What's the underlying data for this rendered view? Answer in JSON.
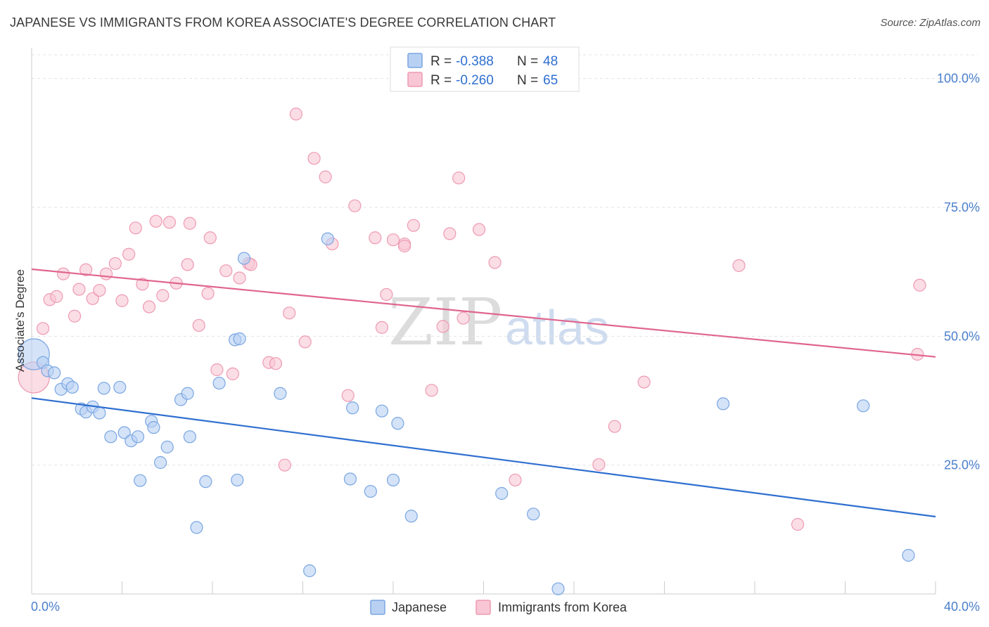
{
  "title": "JAPANESE VS IMMIGRANTS FROM KOREA ASSOCIATE'S DEGREE CORRELATION CHART",
  "source": "Source: ZipAtlas.com",
  "watermark": {
    "zip": "ZIP",
    "atlas": "atlas"
  },
  "legend": {
    "rows": [
      {
        "r_label": "R =",
        "r_value": "-0.388",
        "n_label": "N =",
        "n_value": "48"
      },
      {
        "r_label": "R =",
        "r_value": "-0.260",
        "n_label": "N =",
        "n_value": "65"
      }
    ]
  },
  "bottom_legend": [
    "Japanese",
    "Immigrants from Korea"
  ],
  "colors": {
    "japanese_fill": "#b8d1f3",
    "japanese_stroke": "#7aa6e2",
    "japanese_line": "#2f6fd0",
    "korea_fill": "#f8c6d4",
    "korea_stroke": "#ee9ab3",
    "korea_line": "#e0658e",
    "tick_label": "#4a7fcc",
    "grid": "#e3e3e3"
  },
  "chart_data": {
    "type": "scatter",
    "xlabel": "",
    "ylabel": "Associate's Degree",
    "xlim": [
      0,
      40
    ],
    "ylim": [
      0,
      105
    ],
    "y_ticks": [
      25,
      50,
      75,
      100
    ],
    "y_tick_labels": [
      "25.0%",
      "50.0%",
      "75.0%",
      "100.0%"
    ],
    "x_tick_labels": [
      "0.0%",
      "40.0%"
    ],
    "grid": "horizontal dashed",
    "series": [
      {
        "name": "Japanese",
        "trend": {
          "x": [
            0,
            40
          ],
          "y": [
            38.0,
            15.0
          ]
        },
        "points": [
          {
            "x": 0.1,
            "y": 46.5,
            "big": true
          },
          {
            "x": 0.5,
            "y": 44.9
          },
          {
            "x": 0.7,
            "y": 43.3
          },
          {
            "x": 1.0,
            "y": 42.9
          },
          {
            "x": 1.3,
            "y": 39.7
          },
          {
            "x": 1.6,
            "y": 40.8
          },
          {
            "x": 1.8,
            "y": 40.1
          },
          {
            "x": 2.2,
            "y": 35.9
          },
          {
            "x": 2.4,
            "y": 35.3
          },
          {
            "x": 2.7,
            "y": 36.3
          },
          {
            "x": 3.0,
            "y": 35.1
          },
          {
            "x": 3.2,
            "y": 39.9
          },
          {
            "x": 3.5,
            "y": 30.5
          },
          {
            "x": 3.9,
            "y": 40.1
          },
          {
            "x": 4.1,
            "y": 31.3
          },
          {
            "x": 4.4,
            "y": 29.7
          },
          {
            "x": 4.7,
            "y": 30.5
          },
          {
            "x": 4.8,
            "y": 22.0
          },
          {
            "x": 5.3,
            "y": 33.5
          },
          {
            "x": 5.4,
            "y": 32.3
          },
          {
            "x": 5.7,
            "y": 25.5
          },
          {
            "x": 6.0,
            "y": 28.5
          },
          {
            "x": 6.6,
            "y": 37.7
          },
          {
            "x": 6.9,
            "y": 38.9
          },
          {
            "x": 7.0,
            "y": 30.5
          },
          {
            "x": 7.3,
            "y": 12.9
          },
          {
            "x": 7.7,
            "y": 21.8
          },
          {
            "x": 8.3,
            "y": 40.9
          },
          {
            "x": 9.4,
            "y": 65.1
          },
          {
            "x": 9.0,
            "y": 49.3
          },
          {
            "x": 9.2,
            "y": 49.5
          },
          {
            "x": 9.1,
            "y": 22.1
          },
          {
            "x": 11.0,
            "y": 38.9
          },
          {
            "x": 12.3,
            "y": 4.5
          },
          {
            "x": 13.1,
            "y": 68.9
          },
          {
            "x": 14.2,
            "y": 36.1
          },
          {
            "x": 14.1,
            "y": 22.3
          },
          {
            "x": 15.0,
            "y": 19.9
          },
          {
            "x": 15.5,
            "y": 35.5
          },
          {
            "x": 16.0,
            "y": 22.1
          },
          {
            "x": 16.2,
            "y": 33.1
          },
          {
            "x": 16.8,
            "y": 15.1
          },
          {
            "x": 20.8,
            "y": 19.5
          },
          {
            "x": 22.2,
            "y": 15.5
          },
          {
            "x": 23.3,
            "y": 1.0
          },
          {
            "x": 30.6,
            "y": 36.9
          },
          {
            "x": 36.8,
            "y": 36.5
          },
          {
            "x": 38.8,
            "y": 7.5
          }
        ]
      },
      {
        "name": "Immigrants from Korea",
        "trend": {
          "x": [
            0,
            40
          ],
          "y": [
            63.0,
            46.0
          ]
        },
        "points": [
          {
            "x": 0.1,
            "y": 42.0,
            "big": true
          },
          {
            "x": 0.5,
            "y": 51.5
          },
          {
            "x": 0.8,
            "y": 57.1
          },
          {
            "x": 1.1,
            "y": 57.7
          },
          {
            "x": 1.4,
            "y": 62.1
          },
          {
            "x": 1.9,
            "y": 53.9
          },
          {
            "x": 2.1,
            "y": 59.1
          },
          {
            "x": 2.4,
            "y": 62.9
          },
          {
            "x": 2.7,
            "y": 57.3
          },
          {
            "x": 3.0,
            "y": 58.9
          },
          {
            "x": 3.3,
            "y": 62.1
          },
          {
            "x": 3.7,
            "y": 64.1
          },
          {
            "x": 4.0,
            "y": 56.9
          },
          {
            "x": 4.3,
            "y": 65.9
          },
          {
            "x": 4.6,
            "y": 71.0
          },
          {
            "x": 4.9,
            "y": 60.1
          },
          {
            "x": 5.2,
            "y": 55.7
          },
          {
            "x": 5.5,
            "y": 72.3
          },
          {
            "x": 5.8,
            "y": 57.9
          },
          {
            "x": 6.1,
            "y": 72.1
          },
          {
            "x": 6.4,
            "y": 60.3
          },
          {
            "x": 6.9,
            "y": 63.9
          },
          {
            "x": 7.0,
            "y": 71.9
          },
          {
            "x": 7.4,
            "y": 52.1
          },
          {
            "x": 7.8,
            "y": 58.3
          },
          {
            "x": 7.9,
            "y": 69.1
          },
          {
            "x": 8.2,
            "y": 43.5
          },
          {
            "x": 8.6,
            "y": 62.7
          },
          {
            "x": 8.9,
            "y": 42.7
          },
          {
            "x": 9.2,
            "y": 61.3
          },
          {
            "x": 9.6,
            "y": 64.1
          },
          {
            "x": 9.7,
            "y": 63.9
          },
          {
            "x": 10.5,
            "y": 44.9
          },
          {
            "x": 10.8,
            "y": 44.7
          },
          {
            "x": 11.2,
            "y": 25.0
          },
          {
            "x": 11.4,
            "y": 54.5
          },
          {
            "x": 11.7,
            "y": 93.1
          },
          {
            "x": 12.1,
            "y": 48.9
          },
          {
            "x": 12.5,
            "y": 84.5
          },
          {
            "x": 13.0,
            "y": 80.9
          },
          {
            "x": 13.3,
            "y": 67.9
          },
          {
            "x": 14.0,
            "y": 38.5
          },
          {
            "x": 14.3,
            "y": 75.3
          },
          {
            "x": 15.2,
            "y": 69.1
          },
          {
            "x": 15.5,
            "y": 51.7
          },
          {
            "x": 15.7,
            "y": 58.1
          },
          {
            "x": 16.0,
            "y": 68.7
          },
          {
            "x": 16.5,
            "y": 67.9
          },
          {
            "x": 16.5,
            "y": 67.5
          },
          {
            "x": 16.9,
            "y": 71.5
          },
          {
            "x": 17.7,
            "y": 39.5
          },
          {
            "x": 18.2,
            "y": 51.9
          },
          {
            "x": 18.5,
            "y": 69.9
          },
          {
            "x": 18.9,
            "y": 80.7
          },
          {
            "x": 19.1,
            "y": 53.5
          },
          {
            "x": 19.8,
            "y": 70.7
          },
          {
            "x": 20.5,
            "y": 64.3
          },
          {
            "x": 21.4,
            "y": 22.1
          },
          {
            "x": 25.1,
            "y": 25.1
          },
          {
            "x": 25.8,
            "y": 32.5
          },
          {
            "x": 27.1,
            "y": 41.1
          },
          {
            "x": 31.3,
            "y": 63.7
          },
          {
            "x": 33.9,
            "y": 13.5
          },
          {
            "x": 39.2,
            "y": 46.5
          },
          {
            "x": 39.3,
            "y": 59.9
          }
        ]
      }
    ]
  }
}
